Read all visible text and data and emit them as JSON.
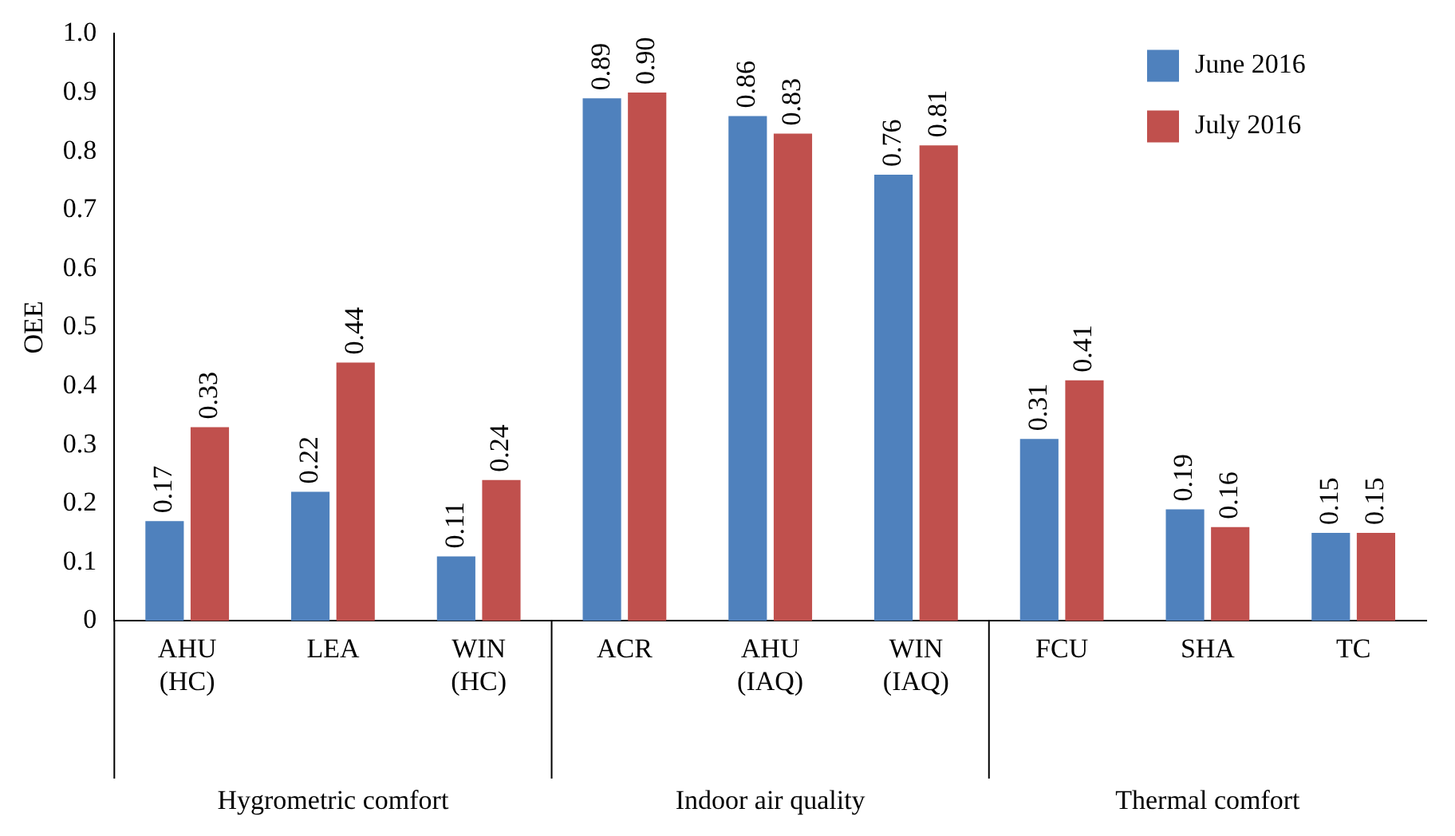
{
  "chart_data": {
    "type": "bar",
    "ylabel": "OEE",
    "categories": [
      "AHU (HC)",
      "LEA",
      "WIN (HC)",
      "ACR",
      "AHU (IAQ)",
      "WIN (IAQ)",
      "FCU",
      "SHA",
      "TC"
    ],
    "series": [
      {
        "name": "June 2016",
        "color": "#4f81bd",
        "values": [
          0.17,
          0.22,
          0.11,
          0.89,
          0.86,
          0.76,
          0.31,
          0.19,
          0.15
        ],
        "value_labels": [
          "0.17",
          "0.22",
          "0.11",
          "0.89",
          "0.86",
          "0.76",
          "0.31",
          "0.19",
          "0.15"
        ]
      },
      {
        "name": "July 2016",
        "color": "#c0504d",
        "values": [
          0.33,
          0.44,
          0.24,
          0.9,
          0.83,
          0.81,
          0.41,
          0.16,
          0.15
        ],
        "value_labels": [
          "0.33",
          "0.44",
          "0.24",
          "0.90",
          "0.83",
          "0.81",
          "0.41",
          "0.16",
          "0.15"
        ]
      }
    ],
    "ylim": [
      0,
      1
    ],
    "yticks": [
      0,
      0.1,
      0.2,
      0.3,
      0.4,
      0.5,
      0.6,
      0.7,
      0.8,
      0.9,
      {
        "value": 1,
        "label": "1.0"
      }
    ],
    "grid": false,
    "legend": "top right",
    "annotations": [
      "Hygrometric comfort",
      "Indoor air quality",
      "Thermal comfort"
    ]
  }
}
